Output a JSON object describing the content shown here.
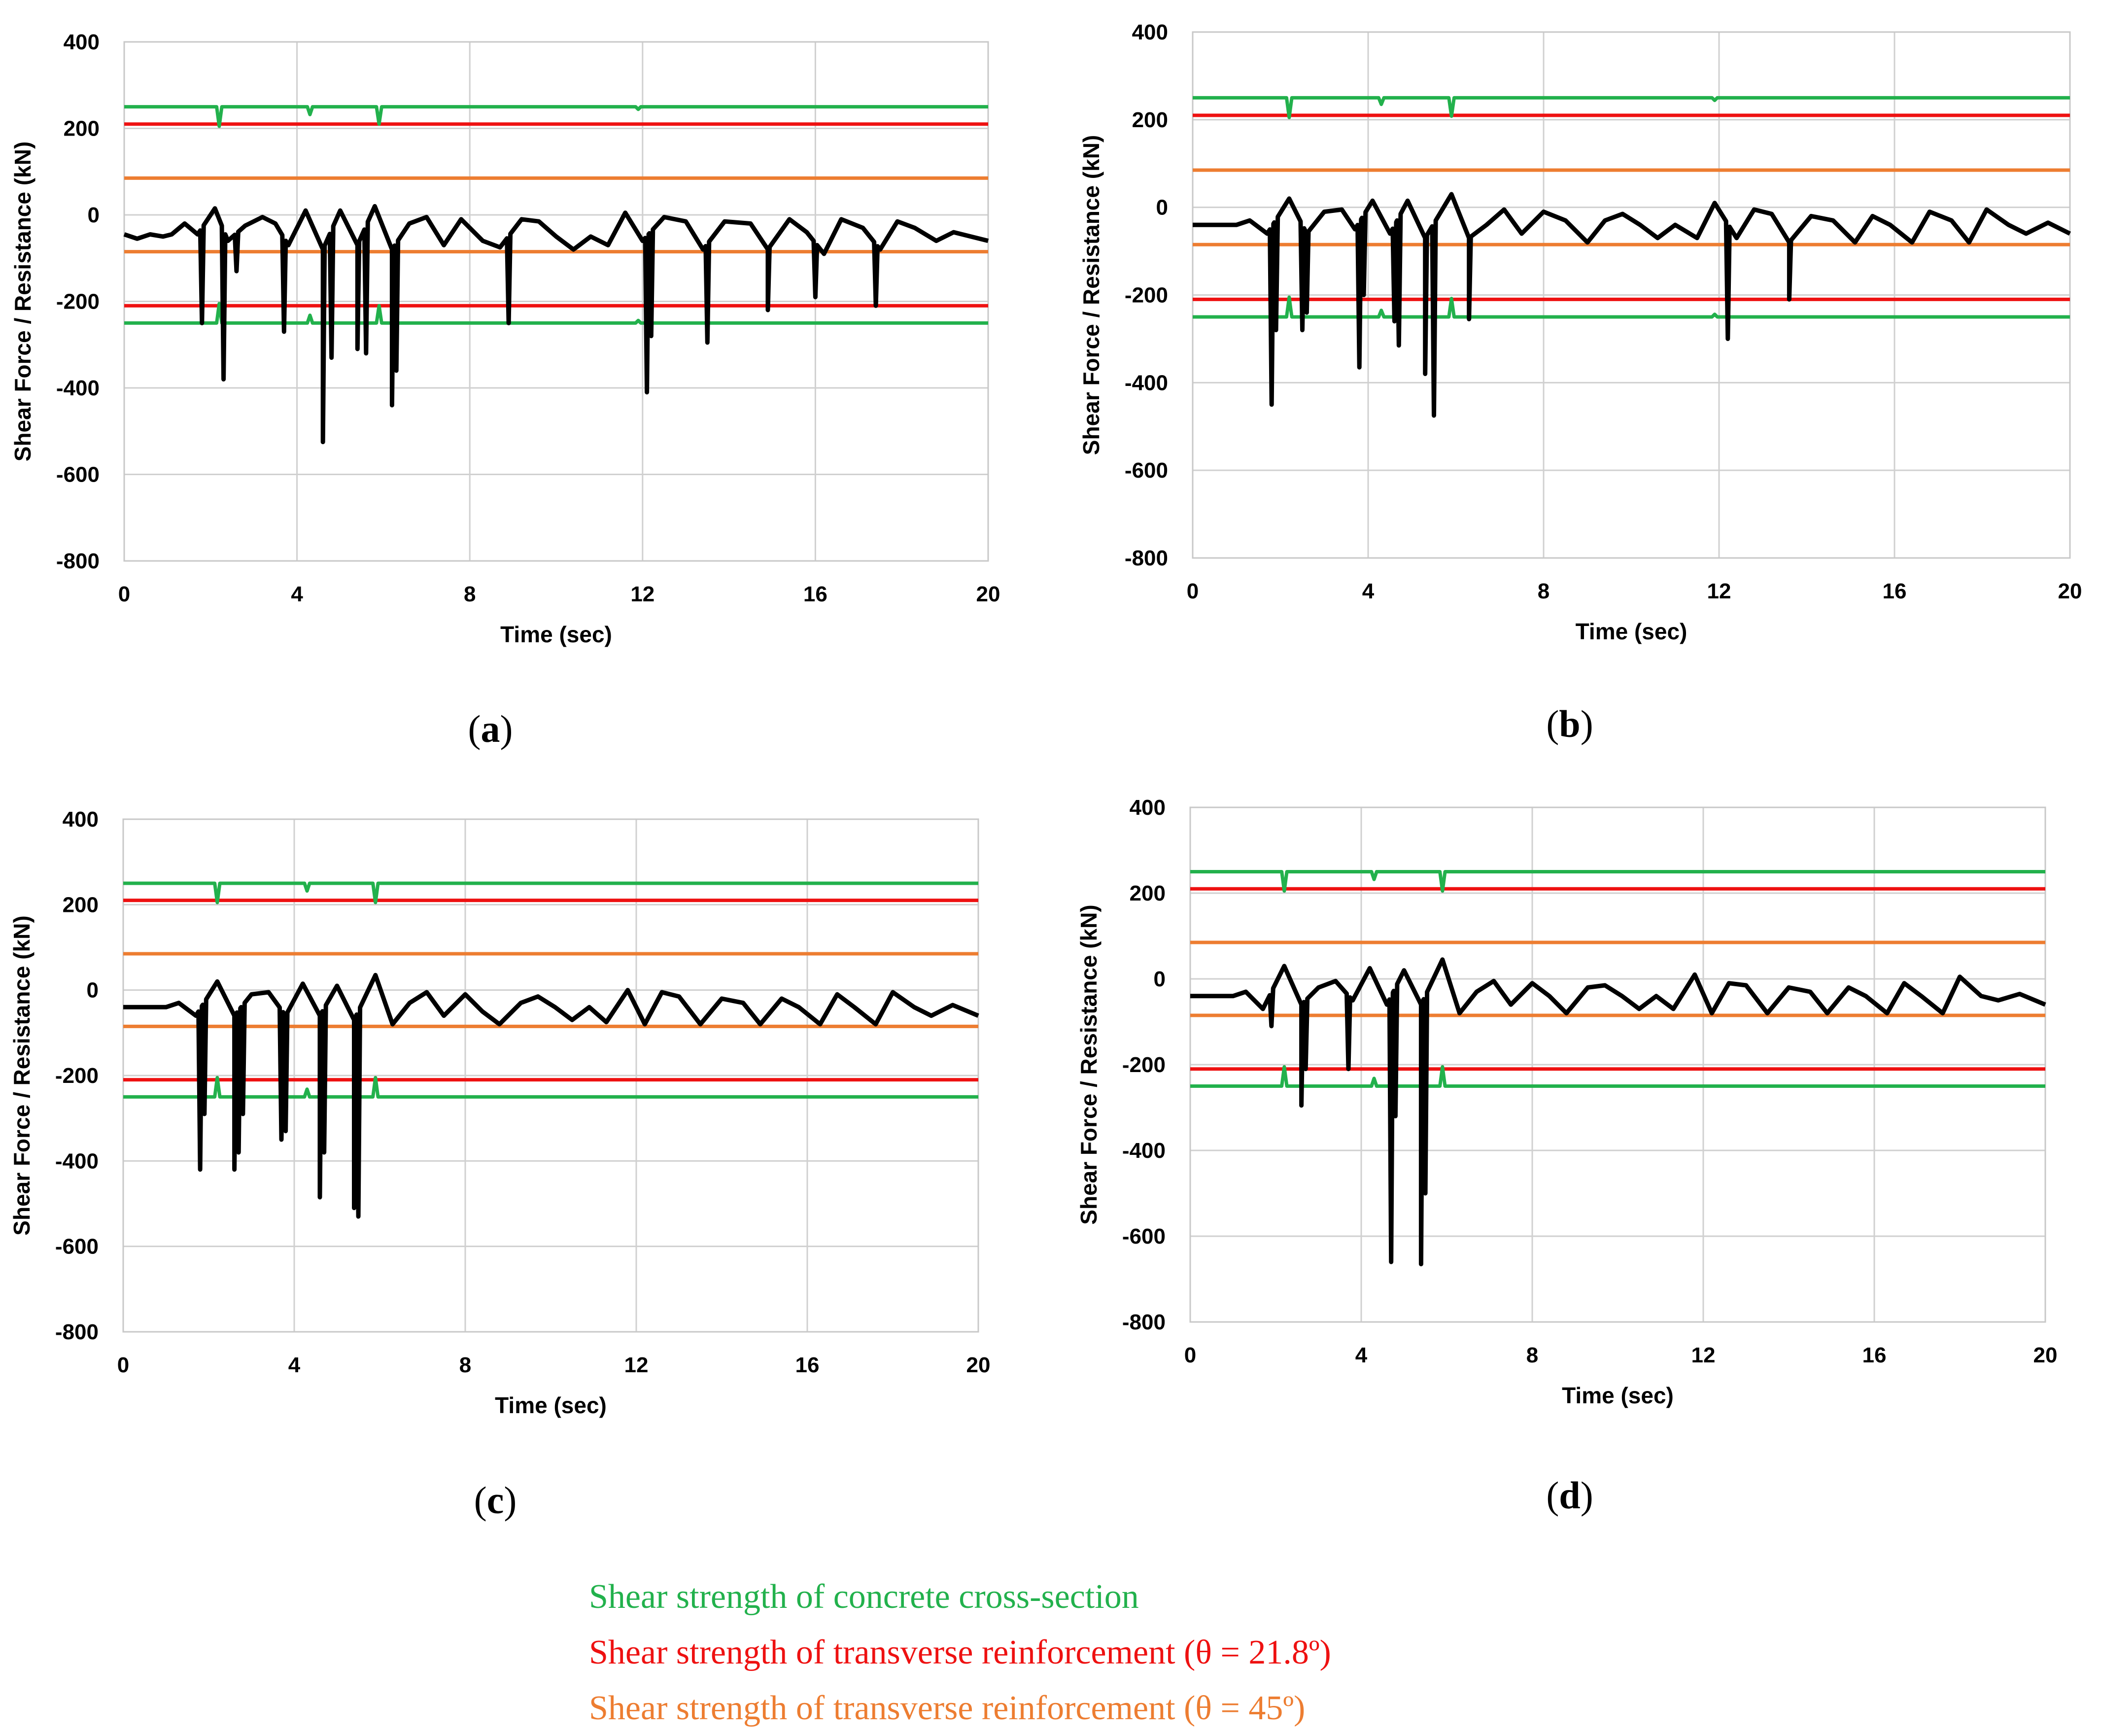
{
  "legend": [
    {
      "text": "Shear strength of concrete cross-section",
      "color": "#22b14c"
    },
    {
      "text": "Shear strength of transverse reinforcement (θ = 21.8º)",
      "color": "#ee1111"
    },
    {
      "text": "Shear strength of transverse reinforcement (θ = 45º)",
      "color": "#ed7d31"
    }
  ],
  "chart_data": [
    {
      "type": "line",
      "panel": "a",
      "label_open": "(",
      "label_letter": "a",
      "label_close": ")",
      "xlabel": "Time (sec)",
      "ylabel": "Shear Force / Resistance (kN)",
      "xlim": [
        0,
        20
      ],
      "ylim": [
        -800,
        400
      ],
      "xticks": [
        "0",
        "4",
        "8",
        "12",
        "16",
        "20"
      ],
      "yticks": [
        "400",
        "200",
        "0",
        "-200",
        "-400",
        "-600",
        "-800"
      ],
      "grid": true,
      "colors": {
        "response": "#000000",
        "concrete": "#22b14c",
        "rebar_21_8": "#ee1111",
        "rebar_45": "#ed7d31"
      },
      "concrete_dips": [
        [
          2.2,
          205
        ],
        [
          4.3,
          232
        ],
        [
          5.9,
          210
        ],
        [
          11.9,
          244
        ]
      ],
      "levels": {
        "concrete": 250,
        "rebar_21_8": 210,
        "rebar_45": 85
      },
      "response_baseline": [
        [
          0,
          -45
        ],
        [
          0.3,
          -55
        ],
        [
          0.6,
          -45
        ],
        [
          0.9,
          -50
        ],
        [
          1.1,
          -45
        ],
        [
          1.4,
          -20
        ],
        [
          1.7,
          -45
        ],
        [
          2.1,
          15
        ],
        [
          2.4,
          -60
        ],
        [
          2.8,
          -25
        ],
        [
          3.2,
          -5
        ],
        [
          3.5,
          -20
        ],
        [
          3.8,
          -70
        ],
        [
          4.2,
          10
        ],
        [
          4.6,
          -80
        ],
        [
          5.0,
          10
        ],
        [
          5.4,
          -70
        ],
        [
          5.8,
          20
        ],
        [
          6.2,
          -80
        ],
        [
          6.6,
          -20
        ],
        [
          7.0,
          -5
        ],
        [
          7.4,
          -70
        ],
        [
          7.8,
          -10
        ],
        [
          8.3,
          -60
        ],
        [
          8.7,
          -75
        ],
        [
          9.2,
          -10
        ],
        [
          9.6,
          -15
        ],
        [
          10.0,
          -50
        ],
        [
          10.4,
          -80
        ],
        [
          10.8,
          -50
        ],
        [
          11.2,
          -70
        ],
        [
          11.6,
          5
        ],
        [
          12.0,
          -60
        ],
        [
          12.5,
          -5
        ],
        [
          13.0,
          -15
        ],
        [
          13.4,
          -80
        ],
        [
          13.9,
          -15
        ],
        [
          14.5,
          -20
        ],
        [
          14.9,
          -80
        ],
        [
          15.4,
          -10
        ],
        [
          15.8,
          -40
        ],
        [
          16.2,
          -90
        ],
        [
          16.6,
          -10
        ],
        [
          17.1,
          -30
        ],
        [
          17.5,
          -80
        ],
        [
          17.9,
          -15
        ],
        [
          18.3,
          -30
        ],
        [
          18.8,
          -60
        ],
        [
          19.2,
          -40
        ],
        [
          19.6,
          -50
        ],
        [
          20,
          -60
        ]
      ],
      "response_spikes": [
        [
          1.8,
          -250
        ],
        [
          2.3,
          -380
        ],
        [
          2.6,
          -130
        ],
        [
          3.7,
          -270
        ],
        [
          4.6,
          -525
        ],
        [
          4.8,
          -330
        ],
        [
          5.4,
          -310
        ],
        [
          5.6,
          -320
        ],
        [
          6.2,
          -440
        ],
        [
          6.3,
          -360
        ],
        [
          8.9,
          -250
        ],
        [
          12.1,
          -410
        ],
        [
          12.2,
          -280
        ],
        [
          13.5,
          -295
        ],
        [
          14.9,
          -220
        ],
        [
          16.0,
          -190
        ],
        [
          17.4,
          -210
        ]
      ]
    },
    {
      "type": "line",
      "panel": "b",
      "label_open": "(",
      "label_letter": "b",
      "label_close": ")",
      "xlabel": "Time (sec)",
      "ylabel": "Shear Force / Resistance (kN)",
      "xlim": [
        0,
        20
      ],
      "ylim": [
        -800,
        400
      ],
      "xticks": [
        "0",
        "4",
        "8",
        "12",
        "16",
        "20"
      ],
      "yticks": [
        "400",
        "200",
        "0",
        "-200",
        "-400",
        "-600",
        "-800"
      ],
      "grid": true,
      "colors": {
        "response": "#000000",
        "concrete": "#22b14c",
        "rebar_21_8": "#ee1111",
        "rebar_45": "#ed7d31"
      },
      "concrete_dips": [
        [
          2.2,
          205
        ],
        [
          4.3,
          235
        ],
        [
          5.9,
          208
        ],
        [
          11.9,
          244
        ]
      ],
      "levels": {
        "concrete": 250,
        "rebar_21_8": 210,
        "rebar_45": 85
      },
      "response_baseline": [
        [
          0,
          -40
        ],
        [
          0.6,
          -40
        ],
        [
          1.0,
          -40
        ],
        [
          1.3,
          -30
        ],
        [
          1.7,
          -60
        ],
        [
          2.2,
          20
        ],
        [
          2.6,
          -60
        ],
        [
          3.0,
          -10
        ],
        [
          3.4,
          -5
        ],
        [
          3.7,
          -50
        ],
        [
          4.1,
          15
        ],
        [
          4.5,
          -60
        ],
        [
          4.9,
          15
        ],
        [
          5.3,
          -70
        ],
        [
          5.9,
          30
        ],
        [
          6.3,
          -70
        ],
        [
          6.7,
          -40
        ],
        [
          7.1,
          -5
        ],
        [
          7.5,
          -60
        ],
        [
          8.0,
          -10
        ],
        [
          8.5,
          -30
        ],
        [
          9.0,
          -80
        ],
        [
          9.4,
          -30
        ],
        [
          9.8,
          -15
        ],
        [
          10.2,
          -40
        ],
        [
          10.6,
          -70
        ],
        [
          11.0,
          -40
        ],
        [
          11.5,
          -70
        ],
        [
          11.9,
          10
        ],
        [
          12.4,
          -70
        ],
        [
          12.8,
          -5
        ],
        [
          13.2,
          -15
        ],
        [
          13.6,
          -80
        ],
        [
          14.1,
          -20
        ],
        [
          14.6,
          -30
        ],
        [
          15.1,
          -80
        ],
        [
          15.5,
          -20
        ],
        [
          15.9,
          -40
        ],
        [
          16.4,
          -80
        ],
        [
          16.8,
          -10
        ],
        [
          17.3,
          -30
        ],
        [
          17.7,
          -80
        ],
        [
          18.1,
          -5
        ],
        [
          18.6,
          -40
        ],
        [
          19.0,
          -60
        ],
        [
          19.5,
          -35
        ],
        [
          20,
          -60
        ]
      ],
      "response_spikes": [
        [
          1.8,
          -450
        ],
        [
          1.9,
          -280
        ],
        [
          2.5,
          -280
        ],
        [
          2.6,
          -240
        ],
        [
          3.8,
          -365
        ],
        [
          3.9,
          -200
        ],
        [
          4.6,
          -260
        ],
        [
          4.7,
          -315
        ],
        [
          5.3,
          -380
        ],
        [
          5.5,
          -475
        ],
        [
          6.3,
          -255
        ],
        [
          12.2,
          -300
        ],
        [
          13.6,
          -210
        ]
      ]
    },
    {
      "type": "line",
      "panel": "c",
      "label_open": "(",
      "label_letter": "c",
      "label_close": ")",
      "xlabel": "Time (sec)",
      "ylabel": "Shear Force / Resistance (kN)",
      "xlim": [
        0,
        20
      ],
      "ylim": [
        -800,
        400
      ],
      "xticks": [
        "0",
        "4",
        "8",
        "12",
        "16",
        "20"
      ],
      "yticks": [
        "400",
        "200",
        "0",
        "-200",
        "-400",
        "-600",
        "-800"
      ],
      "grid": true,
      "colors": {
        "response": "#000000",
        "concrete": "#22b14c",
        "rebar_21_8": "#ee1111",
        "rebar_45": "#ed7d31"
      },
      "concrete_dips": [
        [
          2.2,
          205
        ],
        [
          4.3,
          232
        ],
        [
          5.9,
          205
        ]
      ],
      "levels": {
        "concrete": 250,
        "rebar_21_8": 210,
        "rebar_45": 85
      },
      "response_baseline": [
        [
          0,
          -40
        ],
        [
          0.6,
          -40
        ],
        [
          1.0,
          -40
        ],
        [
          1.3,
          -30
        ],
        [
          1.7,
          -60
        ],
        [
          2.2,
          20
        ],
        [
          2.6,
          -60
        ],
        [
          3.0,
          -10
        ],
        [
          3.4,
          -5
        ],
        [
          3.8,
          -60
        ],
        [
          4.2,
          15
        ],
        [
          4.6,
          -60
        ],
        [
          5.0,
          10
        ],
        [
          5.4,
          -70
        ],
        [
          5.9,
          35
        ],
        [
          6.3,
          -80
        ],
        [
          6.7,
          -30
        ],
        [
          7.1,
          -5
        ],
        [
          7.5,
          -60
        ],
        [
          8.0,
          -10
        ],
        [
          8.4,
          -50
        ],
        [
          8.8,
          -80
        ],
        [
          9.3,
          -30
        ],
        [
          9.7,
          -15
        ],
        [
          10.1,
          -40
        ],
        [
          10.5,
          -70
        ],
        [
          10.9,
          -40
        ],
        [
          11.3,
          -75
        ],
        [
          11.8,
          0
        ],
        [
          12.2,
          -80
        ],
        [
          12.6,
          -5
        ],
        [
          13.0,
          -15
        ],
        [
          13.5,
          -80
        ],
        [
          14.0,
          -20
        ],
        [
          14.5,
          -30
        ],
        [
          14.9,
          -80
        ],
        [
          15.4,
          -20
        ],
        [
          15.8,
          -40
        ],
        [
          16.3,
          -80
        ],
        [
          16.7,
          -10
        ],
        [
          17.1,
          -40
        ],
        [
          17.6,
          -80
        ],
        [
          18.0,
          -5
        ],
        [
          18.5,
          -40
        ],
        [
          18.9,
          -60
        ],
        [
          19.4,
          -35
        ],
        [
          20,
          -60
        ]
      ],
      "response_spikes": [
        [
          1.8,
          -420
        ],
        [
          1.9,
          -290
        ],
        [
          2.6,
          -420
        ],
        [
          2.7,
          -380
        ],
        [
          2.8,
          -290
        ],
        [
          3.7,
          -350
        ],
        [
          3.8,
          -330
        ],
        [
          4.6,
          -485
        ],
        [
          4.7,
          -380
        ],
        [
          5.4,
          -510
        ],
        [
          5.5,
          -530
        ]
      ]
    },
    {
      "type": "line",
      "panel": "d",
      "label_open": "(",
      "label_letter": "d",
      "label_close": ")",
      "xlabel": "Time (sec)",
      "ylabel": "Shear Force / Resistance (kN)",
      "xlim": [
        0,
        20
      ],
      "ylim": [
        -800,
        400
      ],
      "xticks": [
        "0",
        "4",
        "8",
        "12",
        "16",
        "20"
      ],
      "yticks": [
        "400",
        "200",
        "0",
        "-200",
        "-400",
        "-600",
        "-800"
      ],
      "grid": true,
      "colors": {
        "response": "#000000",
        "concrete": "#22b14c",
        "rebar_21_8": "#ee1111",
        "rebar_45": "#ed7d31"
      },
      "concrete_dips": [
        [
          2.2,
          205
        ],
        [
          4.3,
          232
        ],
        [
          5.9,
          205
        ]
      ],
      "levels": {
        "concrete": 250,
        "rebar_21_8": 210,
        "rebar_45": 85
      },
      "response_baseline": [
        [
          0,
          -40
        ],
        [
          0.6,
          -40
        ],
        [
          1.0,
          -40
        ],
        [
          1.3,
          -30
        ],
        [
          1.7,
          -70
        ],
        [
          2.2,
          30
        ],
        [
          2.6,
          -60
        ],
        [
          3.0,
          -20
        ],
        [
          3.4,
          -5
        ],
        [
          3.8,
          -50
        ],
        [
          4.2,
          25
        ],
        [
          4.6,
          -60
        ],
        [
          5.0,
          20
        ],
        [
          5.4,
          -60
        ],
        [
          5.9,
          45
        ],
        [
          6.3,
          -80
        ],
        [
          6.7,
          -30
        ],
        [
          7.1,
          -5
        ],
        [
          7.5,
          -60
        ],
        [
          8.0,
          -10
        ],
        [
          8.4,
          -40
        ],
        [
          8.8,
          -80
        ],
        [
          9.3,
          -20
        ],
        [
          9.7,
          -15
        ],
        [
          10.1,
          -40
        ],
        [
          10.5,
          -70
        ],
        [
          10.9,
          -40
        ],
        [
          11.3,
          -70
        ],
        [
          11.8,
          10
        ],
        [
          12.2,
          -80
        ],
        [
          12.6,
          -10
        ],
        [
          13.0,
          -15
        ],
        [
          13.5,
          -80
        ],
        [
          14.0,
          -20
        ],
        [
          14.5,
          -30
        ],
        [
          14.9,
          -80
        ],
        [
          15.4,
          -20
        ],
        [
          15.8,
          -40
        ],
        [
          16.3,
          -80
        ],
        [
          16.7,
          -10
        ],
        [
          17.1,
          -40
        ],
        [
          17.6,
          -80
        ],
        [
          18.0,
          5
        ],
        [
          18.5,
          -40
        ],
        [
          18.9,
          -50
        ],
        [
          19.4,
          -35
        ],
        [
          20,
          -60
        ]
      ],
      "response_spikes": [
        [
          1.9,
          -110
        ],
        [
          2.6,
          -295
        ],
        [
          2.7,
          -210
        ],
        [
          3.7,
          -210
        ],
        [
          4.7,
          -660
        ],
        [
          4.8,
          -320
        ],
        [
          5.4,
          -665
        ],
        [
          5.5,
          -500
        ]
      ]
    }
  ]
}
